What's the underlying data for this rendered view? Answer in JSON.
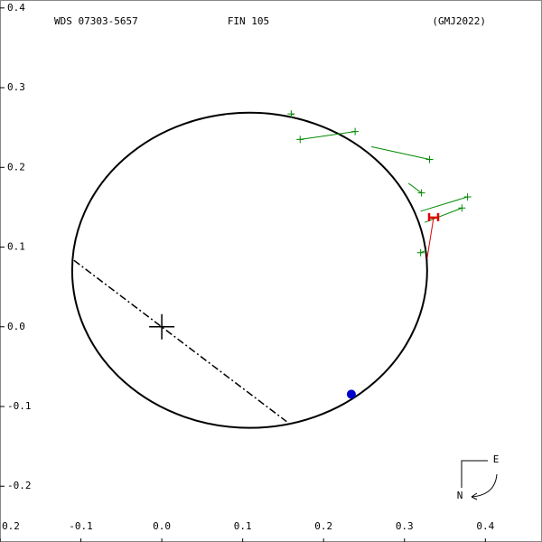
{
  "chart_data": {
    "type": "orbit",
    "title_left": "WDS 07303-5657",
    "title_center": "FIN 105",
    "title_right": "(GMJ2022)",
    "xlim": [
      -0.2,
      0.47
    ],
    "ylim": [
      -0.27,
      0.41
    ],
    "xticks": [
      {
        "value": -0.2,
        "label": "0.2"
      },
      -0.1,
      {
        "value": 0,
        "label": "0.0"
      },
      0.1,
      0.2,
      0.3,
      0.4
    ],
    "yticks": [
      0.4,
      0.3,
      0.2,
      0.1,
      {
        "value": 0,
        "label": "0.0"
      },
      -0.1,
      -0.2
    ],
    "orbit": {
      "cx": 0.1086,
      "cy": 0.0709,
      "rx": 0.2194,
      "ry": 0.1977,
      "color": "#000000"
    },
    "line_of_nodes": {
      "x": [
        -0.1086,
        0.1543
      ],
      "y": [
        0.0834,
        -0.1189
      ]
    },
    "primary": {
      "x": 0,
      "y": 0
    },
    "current_position": {
      "x": 0.2343,
      "y": -0.0846,
      "color": "#0000cc"
    },
    "series": [
      {
        "name": "visual",
        "color": "#008800",
        "x": [
          0.16,
          0.171,
          0.239,
          0.331,
          0.321,
          0.378,
          0.371,
          0.32
        ],
        "y": [
          0.267,
          0.235,
          0.245,
          0.21,
          0.168,
          0.163,
          0.149,
          0.093
        ],
        "fit_x": [
          0.163,
          0.239,
          0.239,
          0.259,
          0.305,
          0.32,
          0.325,
          0.327
        ],
        "fit_y": [
          0.266,
          0.245,
          0.245,
          0.226,
          0.18,
          0.145,
          0.131,
          0.096
        ]
      },
      {
        "name": "speckle",
        "color": "#dd0000",
        "x": [
          0.336
        ],
        "y": [
          0.137
        ],
        "fit_x": [
          0.328
        ],
        "fit_y": [
          0.086
        ]
      }
    ],
    "compass": {
      "east": "E",
      "north": "N"
    }
  }
}
